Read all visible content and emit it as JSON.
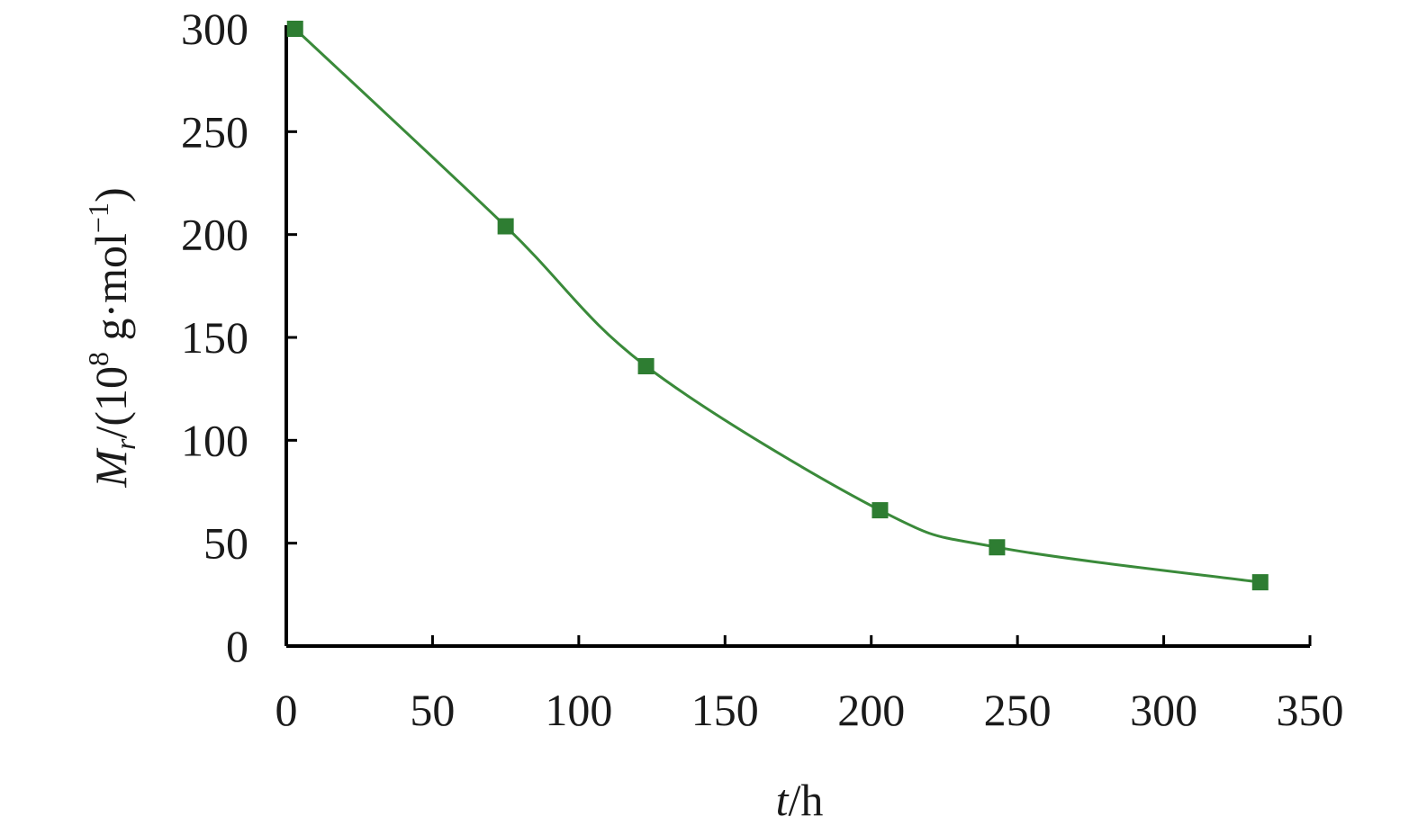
{
  "chart_data": {
    "type": "line",
    "xlabel": {
      "var": "t",
      "unit": "/h"
    },
    "ylabel": {
      "var": "M",
      "sub": "r",
      "unit_pre": "/(10",
      "sup": "8",
      "unit_mid": " g·mol",
      "sup2": "−1",
      "unit_post": ")"
    },
    "xlim": [
      0,
      350
    ],
    "ylim": [
      0,
      300
    ],
    "xticks": [
      0,
      50,
      100,
      150,
      200,
      250,
      300,
      350
    ],
    "yticks": [
      0,
      50,
      100,
      150,
      200,
      250,
      300
    ],
    "grid": false,
    "series": [
      {
        "color": "#2e7d32",
        "line_color": "#3a8a3a",
        "marker": "square",
        "x": [
          3,
          75,
          123,
          203,
          243,
          333
        ],
        "y": [
          300,
          204,
          136,
          66,
          48,
          31
        ]
      }
    ]
  }
}
